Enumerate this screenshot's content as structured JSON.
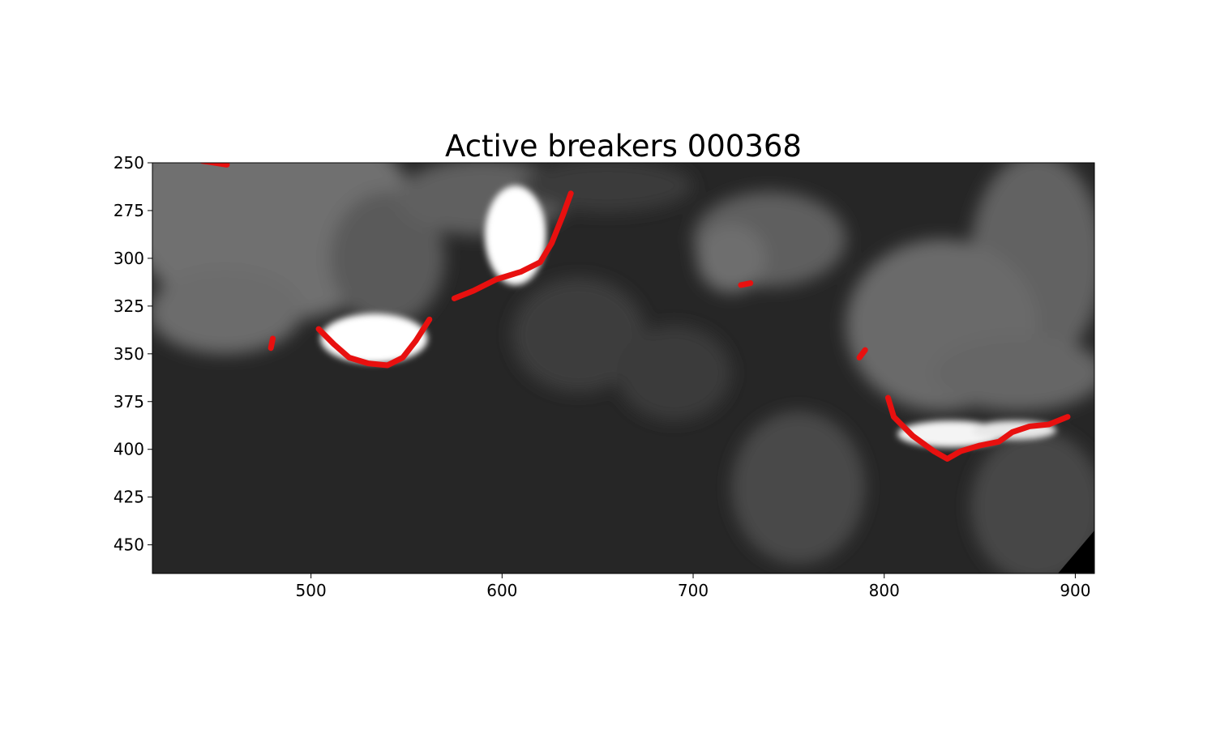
{
  "figure": {
    "title": "Active breakers 000368",
    "background": "#ffffff",
    "overlay_color": "#e8100f",
    "x_axis": {
      "range": [
        417,
        910
      ],
      "ticks": [
        500,
        600,
        700,
        800,
        900
      ]
    },
    "y_axis": {
      "range": [
        250,
        465
      ],
      "inverted": true,
      "ticks": [
        250,
        275,
        300,
        325,
        350,
        375,
        400,
        425,
        450
      ]
    }
  },
  "image_regions": {
    "base": "#262626",
    "hazy": [
      {
        "x": 420,
        "y": 262,
        "rx": 30,
        "ry": 40,
        "c": "#6a6a6a"
      },
      {
        "x": 480,
        "y": 278,
        "rx": 75,
        "ry": 55,
        "c": "#707070"
      },
      {
        "x": 540,
        "y": 300,
        "rx": 30,
        "ry": 35,
        "c": "#5a5a5a"
      },
      {
        "x": 455,
        "y": 328,
        "rx": 40,
        "ry": 22,
        "c": "#6c6c6c"
      },
      {
        "x": 590,
        "y": 268,
        "rx": 45,
        "ry": 20,
        "c": "#606060"
      },
      {
        "x": 655,
        "y": 262,
        "rx": 45,
        "ry": 14,
        "c": "#3a3a3a"
      },
      {
        "x": 740,
        "y": 290,
        "rx": 40,
        "ry": 25,
        "c": "#5e5e5e"
      },
      {
        "x": 720,
        "y": 300,
        "rx": 18,
        "ry": 18,
        "c": "#6e6e6e"
      },
      {
        "x": 880,
        "y": 300,
        "rx": 35,
        "ry": 55,
        "c": "#626262"
      },
      {
        "x": 830,
        "y": 335,
        "rx": 50,
        "ry": 45,
        "c": "#6a6a6a"
      },
      {
        "x": 870,
        "y": 360,
        "rx": 45,
        "ry": 20,
        "c": "#666666"
      },
      {
        "x": 640,
        "y": 340,
        "rx": 35,
        "ry": 30,
        "c": "#3e3e3e"
      },
      {
        "x": 690,
        "y": 360,
        "rx": 30,
        "ry": 25,
        "c": "#3a3a3a"
      },
      {
        "x": 755,
        "y": 420,
        "rx": 35,
        "ry": 40,
        "c": "#4a4a4a"
      },
      {
        "x": 880,
        "y": 430,
        "rx": 35,
        "ry": 40,
        "c": "#464646"
      }
    ],
    "whitewater": [
      {
        "x": 533,
        "y": 342,
        "rx": 28,
        "ry": 13,
        "c": "#ffffff"
      },
      {
        "x": 607,
        "y": 288,
        "rx": 16,
        "ry": 26,
        "c": "#ffffff"
      },
      {
        "x": 835,
        "y": 392,
        "rx": 28,
        "ry": 7,
        "c": "#f4f4f4"
      },
      {
        "x": 868,
        "y": 390,
        "rx": 22,
        "ry": 5,
        "c": "#e8e8e8"
      }
    ],
    "breaker_outlines": [
      [
        [
          504,
          337
        ],
        [
          512,
          345
        ],
        [
          520,
          352
        ],
        [
          530,
          355
        ],
        [
          540,
          356
        ],
        [
          548,
          352
        ],
        [
          555,
          343
        ],
        [
          562,
          332
        ]
      ],
      [
        [
          575,
          321
        ],
        [
          585,
          317
        ],
        [
          597,
          311
        ],
        [
          610,
          307
        ],
        [
          620,
          302
        ],
        [
          626,
          292
        ],
        [
          632,
          277
        ],
        [
          636,
          266
        ]
      ],
      [
        [
          802,
          373
        ],
        [
          805,
          383
        ],
        [
          815,
          393
        ],
        [
          826,
          401
        ],
        [
          833,
          405
        ],
        [
          840,
          401
        ],
        [
          850,
          398
        ],
        [
          860,
          396
        ],
        [
          867,
          391
        ],
        [
          876,
          388
        ],
        [
          886,
          387
        ],
        [
          896,
          383
        ]
      ],
      [
        [
          725,
          314
        ],
        [
          730,
          313
        ]
      ],
      [
        [
          787,
          352
        ],
        [
          790,
          348
        ]
      ],
      [
        [
          479,
          347
        ],
        [
          480,
          342
        ]
      ],
      [
        [
          443,
          249
        ],
        [
          456,
          251
        ]
      ]
    ]
  }
}
